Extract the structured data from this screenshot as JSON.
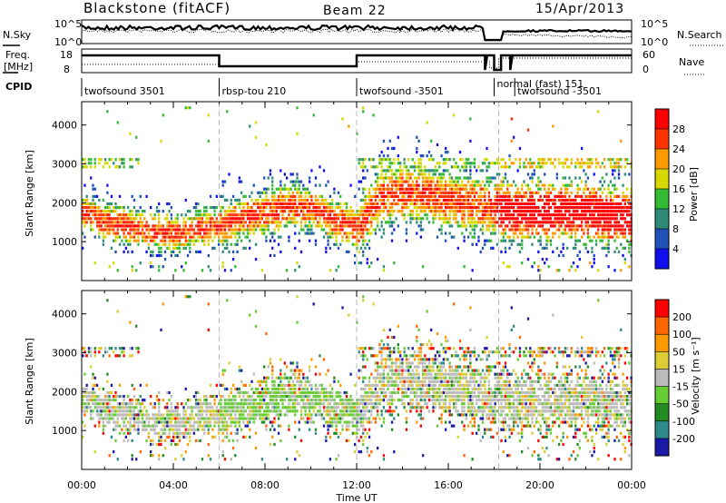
{
  "header": {
    "station": "Blackstone (fitACF)",
    "beam": "Beam 22",
    "date": "15/Apr/2013"
  },
  "top_panels": {
    "noise": {
      "left_label": "N.Sky",
      "right_label": "N.Search",
      "left_ticks": [
        "10^5",
        "10^0"
      ],
      "right_ticks": [
        "10^5",
        "10^0"
      ]
    },
    "freq": {
      "left_label_1": "Freq.",
      "left_label_2": "[MHz]",
      "right_label": "Nave",
      "left_ticks": [
        "18",
        "8"
      ],
      "right_ticks": [
        "60",
        "0"
      ]
    },
    "cpid": {
      "label": "CPID",
      "segments": [
        {
          "label": "twofsound 3501",
          "start_h": 0,
          "end_h": 6
        },
        {
          "label": "rbsp-tou 210",
          "start_h": 6,
          "end_h": 12
        },
        {
          "label": "twofsound -3501",
          "start_h": 12,
          "end_h": 18
        },
        {
          "label": "normal (fast) 151",
          "start_h": 18,
          "end_h": 18.9
        },
        {
          "label": "twofsound -3501",
          "start_h": 18.9,
          "end_h": 24
        }
      ]
    }
  },
  "chart_data": [
    {
      "type": "heatmap",
      "name": "power",
      "ylabel": "Slant Range [km]",
      "yticks": [
        1000,
        2000,
        3000,
        4000
      ],
      "ylim": [
        0,
        4600
      ],
      "xlim": [
        0,
        24
      ],
      "colorbar_label": "Power [dB]",
      "colorbar_ticks": [
        "4",
        "8",
        "12",
        "16",
        "20",
        "24",
        "28"
      ],
      "colorbar_colors": [
        "#1010ee",
        "#2050b8",
        "#2e8b78",
        "#33bb33",
        "#d8d800",
        "#ff9900",
        "#ff3300",
        "#ff0000"
      ],
      "ridge": [
        [
          0,
          1800
        ],
        [
          1,
          1550
        ],
        [
          2,
          1450
        ],
        [
          3,
          1300
        ],
        [
          4,
          1250
        ],
        [
          5,
          1350
        ],
        [
          6,
          1450
        ],
        [
          7,
          1650
        ],
        [
          8,
          1800
        ],
        [
          9,
          1950
        ],
        [
          10,
          1900
        ],
        [
          11,
          1600
        ],
        [
          12,
          1400
        ],
        [
          13,
          2200
        ],
        [
          14,
          2300
        ],
        [
          15,
          2250
        ],
        [
          16,
          2100
        ],
        [
          17,
          2000
        ],
        [
          18,
          1900
        ],
        [
          19,
          1800
        ],
        [
          20,
          1800
        ],
        [
          21,
          1850
        ],
        [
          22,
          1800
        ],
        [
          23,
          1700
        ],
        [
          24,
          1650
        ]
      ]
    },
    {
      "type": "heatmap",
      "name": "velocity",
      "ylabel": "Slant Range [km]",
      "yticks": [
        1000,
        2000,
        3000,
        4000
      ],
      "ylim": [
        0,
        4600
      ],
      "xlim": [
        0,
        24
      ],
      "xticks": [
        "00:00",
        "04:00",
        "08:00",
        "12:00",
        "16:00",
        "20:00",
        "00:00"
      ],
      "xlabel": "Time UT",
      "colorbar_label": "Velocity [m s⁻¹]",
      "colorbar_ticks": [
        "200",
        "100",
        "50",
        "15",
        "-15",
        "-50",
        "-100",
        "-200"
      ],
      "colorbar_colors": [
        "#1a1aa6",
        "#2d8a8a",
        "#228b22",
        "#66cc33",
        "#bbbbbb",
        "#ddcc33",
        "#ff9900",
        "#ff6600",
        "#ff0000"
      ]
    }
  ]
}
